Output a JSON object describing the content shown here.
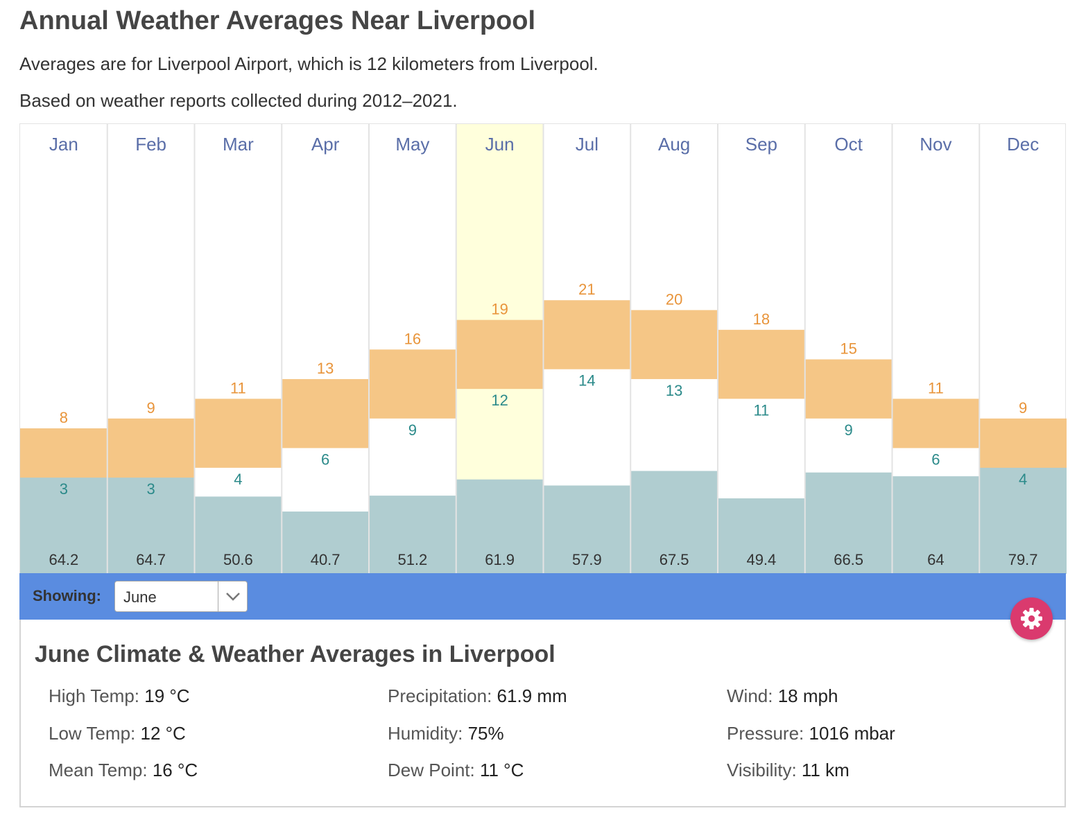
{
  "page": {
    "title": "Annual Weather Averages Near Liverpool",
    "subtitle1": "Averages are for Liverpool Airport, which is 12 kilometers from Liverpool.",
    "subtitle2": "Based on weather reports collected during 2012–2021."
  },
  "chart_data": {
    "type": "bar",
    "categories": [
      "Jan",
      "Feb",
      "Mar",
      "Apr",
      "May",
      "Jun",
      "Jul",
      "Aug",
      "Sep",
      "Oct",
      "Nov",
      "Dec"
    ],
    "highlighted_month": "Jun",
    "series": [
      {
        "values": [
          8,
          9,
          11,
          13,
          16,
          19,
          21,
          20,
          18,
          15,
          11,
          9
        ]
      },
      {
        "values": [
          3,
          3,
          4,
          6,
          9,
          12,
          14,
          13,
          11,
          9,
          6,
          4
        ]
      },
      {
        "values": [
          64.2,
          64.7,
          50.6,
          40.7,
          51.2,
          61.9,
          57.9,
          67.5,
          49.4,
          66.5,
          64,
          79.7
        ]
      }
    ],
    "colors": {
      "temp_band": "#f5c686",
      "high_label": "#e8943a",
      "low_label": "#2b8a8a",
      "precip_bar": "#b0cdd0",
      "month_label": "#5a6ea8",
      "highlight_bg": "#ffffdc",
      "divider": "#e3e3e3"
    },
    "legend": "none",
    "grid": false
  },
  "controls": {
    "showing_label": "Showing:",
    "selected_month": "June",
    "colors": {
      "bar_bg": "#5a8ce0",
      "settings_button": "#da3a6e"
    },
    "settings_icon": "gear-icon"
  },
  "details": {
    "title": "June Climate & Weather Averages in Liverpool",
    "stats": [
      {
        "label": "High Temp:",
        "value": "19 °C"
      },
      {
        "label": "Precipitation:",
        "value": "61.9 mm"
      },
      {
        "label": "Wind:",
        "value": "18 mph"
      },
      {
        "label": "Low Temp:",
        "value": "12 °C"
      },
      {
        "label": "Humidity:",
        "value": "75%"
      },
      {
        "label": "Pressure:",
        "value": "1016 mbar"
      },
      {
        "label": "Mean Temp:",
        "value": "16 °C"
      },
      {
        "label": "Dew Point:",
        "value": "11 °C"
      },
      {
        "label": "Visibility:",
        "value": "11 km"
      }
    ]
  }
}
